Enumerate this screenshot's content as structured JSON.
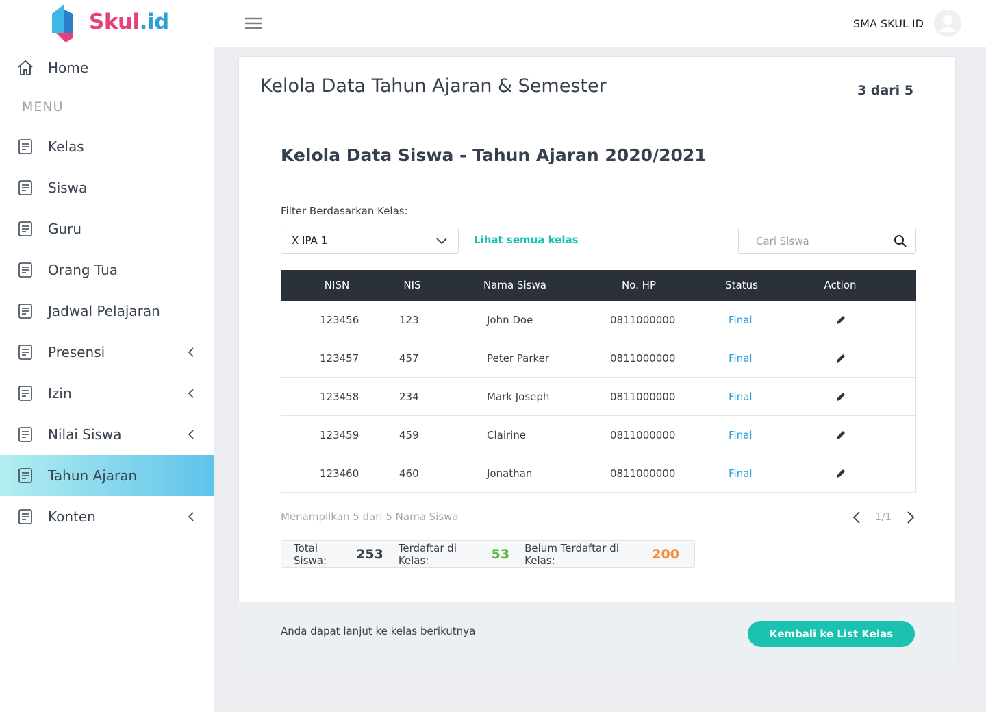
{
  "brand": {
    "name_a": "Skul",
    "name_b": ".id"
  },
  "topbar": {
    "school": "SMA SKUL ID"
  },
  "sidebar": {
    "home": "Home",
    "menu_label": "MENU",
    "items": [
      {
        "label": "Kelas",
        "submenu": false,
        "active": false
      },
      {
        "label": "Siswa",
        "submenu": false,
        "active": false
      },
      {
        "label": "Guru",
        "submenu": false,
        "active": false
      },
      {
        "label": "Orang Tua",
        "submenu": false,
        "active": false
      },
      {
        "label": "Jadwal Pelajaran",
        "submenu": false,
        "active": false
      },
      {
        "label": "Presensi",
        "submenu": true,
        "active": false
      },
      {
        "label": "Izin",
        "submenu": true,
        "active": false
      },
      {
        "label": "Nilai Siswa",
        "submenu": true,
        "active": false
      },
      {
        "label": "Tahun Ajaran",
        "submenu": false,
        "active": true
      },
      {
        "label": "Konten",
        "submenu": true,
        "active": false
      }
    ]
  },
  "page": {
    "title": "Kelola Data Tahun Ajaran & Semester",
    "step": "3 dari 5"
  },
  "section": {
    "title": "Kelola Data Siswa - Tahun Ajaran 2020/2021",
    "filter_label": "Filter Berdasarkan Kelas:",
    "filter_value": "X IPA 1",
    "see_all": "Lihat semua kelas",
    "search_placeholder": "Cari Siswa"
  },
  "table": {
    "columns": [
      "NISN",
      "NIS",
      "Nama Siswa",
      "No. HP",
      "Status",
      "Action"
    ],
    "rows": [
      [
        "123456",
        "123",
        "John Doe",
        "0811000000",
        "Final"
      ],
      [
        "123457",
        "457",
        "Peter Parker",
        "0811000000",
        "Final"
      ],
      [
        "123458",
        "234",
        "Mark Joseph",
        "0811000000",
        "Final"
      ],
      [
        "123459",
        "459",
        "Clairine",
        "0811000000",
        "Final"
      ],
      [
        "123460",
        "460",
        "Jonathan",
        "0811000000",
        "Final"
      ]
    ]
  },
  "pagination": {
    "showing": "Menampilkan 5 dari 5 Nama Siswa",
    "page": "1/1"
  },
  "summary": [
    {
      "label": "Total Siswa:",
      "value": 253,
      "color": "#3a3f45"
    },
    {
      "label": "Terdaftar di Kelas:",
      "value": 53,
      "color": "#5bb53f"
    },
    {
      "label": "Belum Terdaftar di Kelas:",
      "value": 200,
      "color": "#f28c3a"
    }
  ],
  "bottom": {
    "message": "Anda dapat lanjut ke kelas berikutnya",
    "button": "Kembali ke List Kelas"
  }
}
